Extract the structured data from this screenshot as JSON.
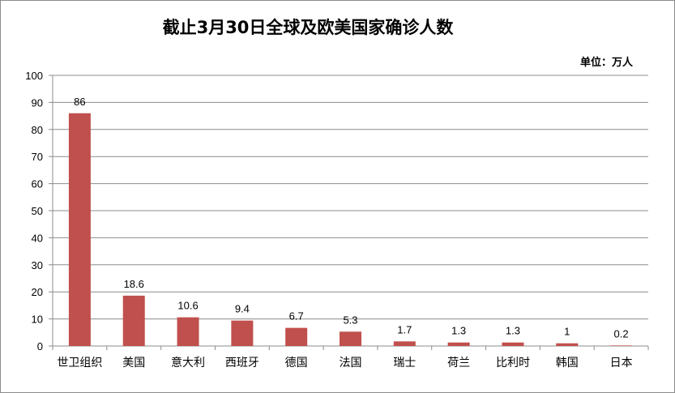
{
  "title": "截止3月30日全球及欧美国家确诊人数",
  "unit_label": "单位：万人",
  "colors": {
    "bar": "#c0504d",
    "grid": "#8c8c8c",
    "axis": "#8c8c8c"
  },
  "chart_data": {
    "type": "bar",
    "title": "截止3月30日全球及欧美国家确诊人数",
    "categories": [
      "世卫组织",
      "美国",
      "意大利",
      "西班牙",
      "德国",
      "法国",
      "瑞士",
      "荷兰",
      "比利时",
      "韩国",
      "日本"
    ],
    "values": [
      86,
      18.6,
      10.6,
      9.4,
      6.7,
      5.3,
      1.7,
      1.3,
      1.3,
      1,
      0.2
    ],
    "value_labels": [
      "86",
      "18.6",
      "10.6",
      "9.4",
      "6.7",
      "5.3",
      "1.7",
      "1.3",
      "1.3",
      "1",
      "0.2"
    ],
    "ylim": [
      0,
      100
    ],
    "yticks": [
      0,
      10,
      20,
      30,
      40,
      50,
      60,
      70,
      80,
      90,
      100
    ],
    "grid": true,
    "legend": "none"
  }
}
